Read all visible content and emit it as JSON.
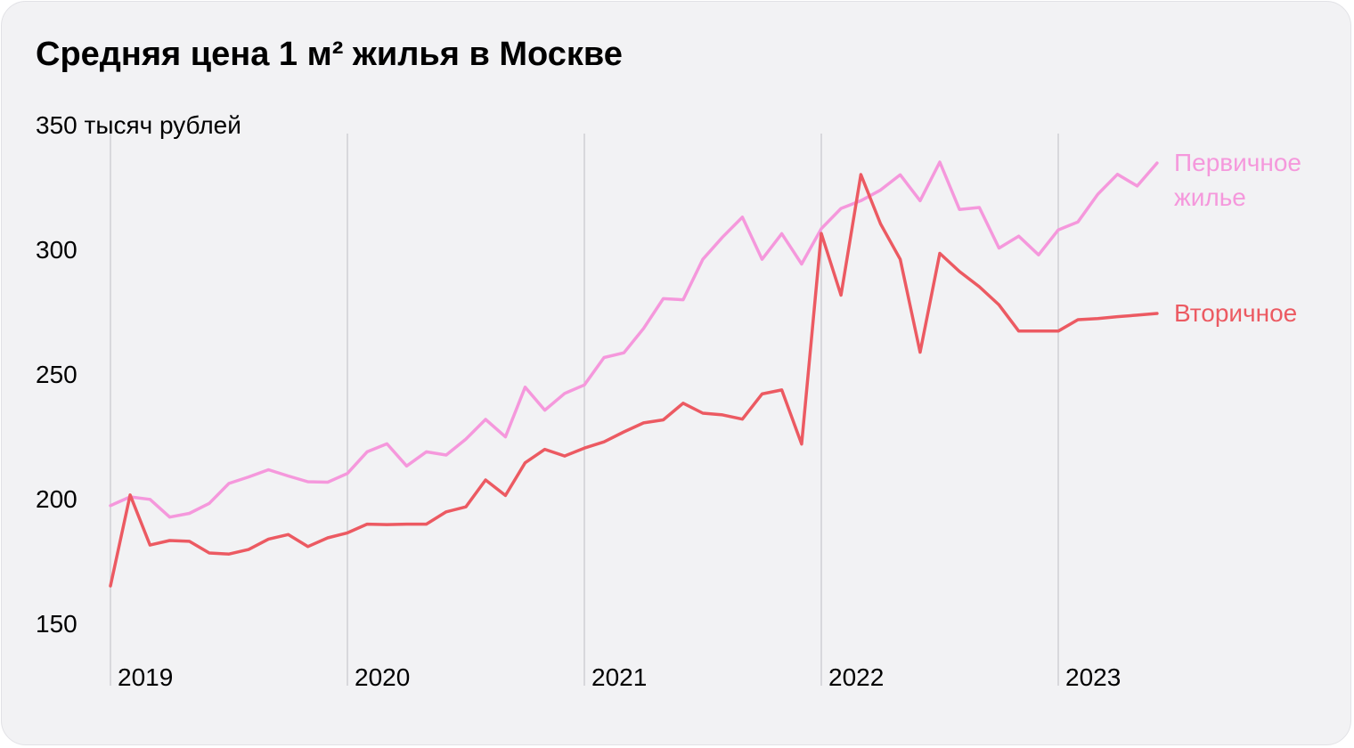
{
  "title": "Средняя цена 1 м² жилья в Москве",
  "chart_data": {
    "type": "line",
    "title": "Средняя цена 1 м² жилья в Москве",
    "ylim": [
      150,
      350
    ],
    "yticks": [
      {
        "value": 350,
        "label": "350 тысяч рублей"
      },
      {
        "value": 300,
        "label": "300"
      },
      {
        "value": 250,
        "label": "250"
      },
      {
        "value": 200,
        "label": "200"
      },
      {
        "value": 150,
        "label": "150"
      }
    ],
    "xticks": [
      {
        "value": 2019.0,
        "label": "2019"
      },
      {
        "value": 2020.0,
        "label": "2020"
      },
      {
        "value": 2021.0,
        "label": "2021"
      },
      {
        "value": 2022.0,
        "label": "2022"
      },
      {
        "value": 2023.0,
        "label": "2023"
      }
    ],
    "xlim": [
      2019.0,
      2024.0
    ],
    "grid": "vertical-at-years",
    "series": [
      {
        "name": "Первичное жилье",
        "label_lines": [
          "Первичное",
          "жилье"
        ],
        "color": "#f598dc",
        "x": [
          2019.0,
          2019.083,
          2019.167,
          2019.25,
          2019.333,
          2019.417,
          2019.5,
          2019.583,
          2019.667,
          2019.75,
          2019.833,
          2019.917,
          2020.0,
          2020.083,
          2020.167,
          2020.25,
          2020.333,
          2020.417,
          2020.5,
          2020.583,
          2020.667,
          2020.75,
          2020.833,
          2020.917,
          2021.0,
          2021.083,
          2021.167,
          2021.25,
          2021.333,
          2021.417,
          2021.5,
          2021.583,
          2021.667,
          2021.75,
          2021.833,
          2021.917,
          2022.0,
          2022.083,
          2022.167,
          2022.25,
          2022.333,
          2022.417,
          2022.5,
          2022.583,
          2022.667,
          2022.75,
          2022.833,
          2022.917,
          2023.0,
          2023.083,
          2023.167,
          2023.25,
          2023.333,
          2023.417
        ],
        "values": [
          197.2,
          200.7,
          199.7,
          192.6,
          194.1,
          198.1,
          206.1,
          208.7,
          211.6,
          209.1,
          206.8,
          206.6,
          210.1,
          218.8,
          222.0,
          213.1,
          218.8,
          217.5,
          223.9,
          231.8,
          224.8,
          244.7,
          235.5,
          242.2,
          245.6,
          256.6,
          258.5,
          268.3,
          280.2,
          279.8,
          296.0,
          304.9,
          312.9,
          296.0,
          306.3,
          294.1,
          308.3,
          316.4,
          319.5,
          323.8,
          329.9,
          319.5,
          335.0,
          316.0,
          316.8,
          300.5,
          305.3,
          297.8,
          307.8,
          311.0,
          322.1,
          330.1,
          325.4,
          334.6
        ]
      },
      {
        "name": "Вторичное",
        "label_lines": [
          "Вторичное"
        ],
        "color": "#ec5a62",
        "x": [
          2019.0,
          2019.083,
          2019.167,
          2019.25,
          2019.333,
          2019.417,
          2019.5,
          2019.583,
          2019.667,
          2019.75,
          2019.833,
          2019.917,
          2020.0,
          2020.083,
          2020.167,
          2020.25,
          2020.333,
          2020.417,
          2020.5,
          2020.583,
          2020.667,
          2020.75,
          2020.833,
          2020.917,
          2021.0,
          2021.083,
          2021.167,
          2021.25,
          2021.333,
          2021.417,
          2021.5,
          2021.583,
          2021.667,
          2021.75,
          2021.833,
          2021.917,
          2022.0,
          2022.083,
          2022.167,
          2022.25,
          2022.333,
          2022.417,
          2022.5,
          2022.583,
          2022.667,
          2022.75,
          2022.833,
          2022.917,
          2023.0,
          2023.083,
          2023.167,
          2023.25,
          2023.333,
          2023.417
        ],
        "values": [
          165.0,
          201.5,
          181.4,
          183.2,
          182.9,
          178.2,
          177.8,
          179.6,
          183.8,
          185.6,
          180.8,
          184.3,
          186.3,
          189.8,
          189.6,
          189.8,
          189.8,
          194.7,
          196.7,
          207.5,
          201.3,
          214.4,
          219.8,
          217.1,
          220.3,
          222.8,
          226.8,
          230.4,
          231.6,
          238.3,
          234.3,
          233.6,
          231.9,
          242.0,
          243.6,
          221.9,
          306.4,
          281.6,
          330.0,
          310.2,
          296.0,
          258.7,
          298.4,
          291.1,
          285.0,
          277.7,
          267.2,
          267.2,
          267.2,
          271.8,
          272.2,
          273.0,
          273.6,
          274.3
        ]
      }
    ]
  }
}
